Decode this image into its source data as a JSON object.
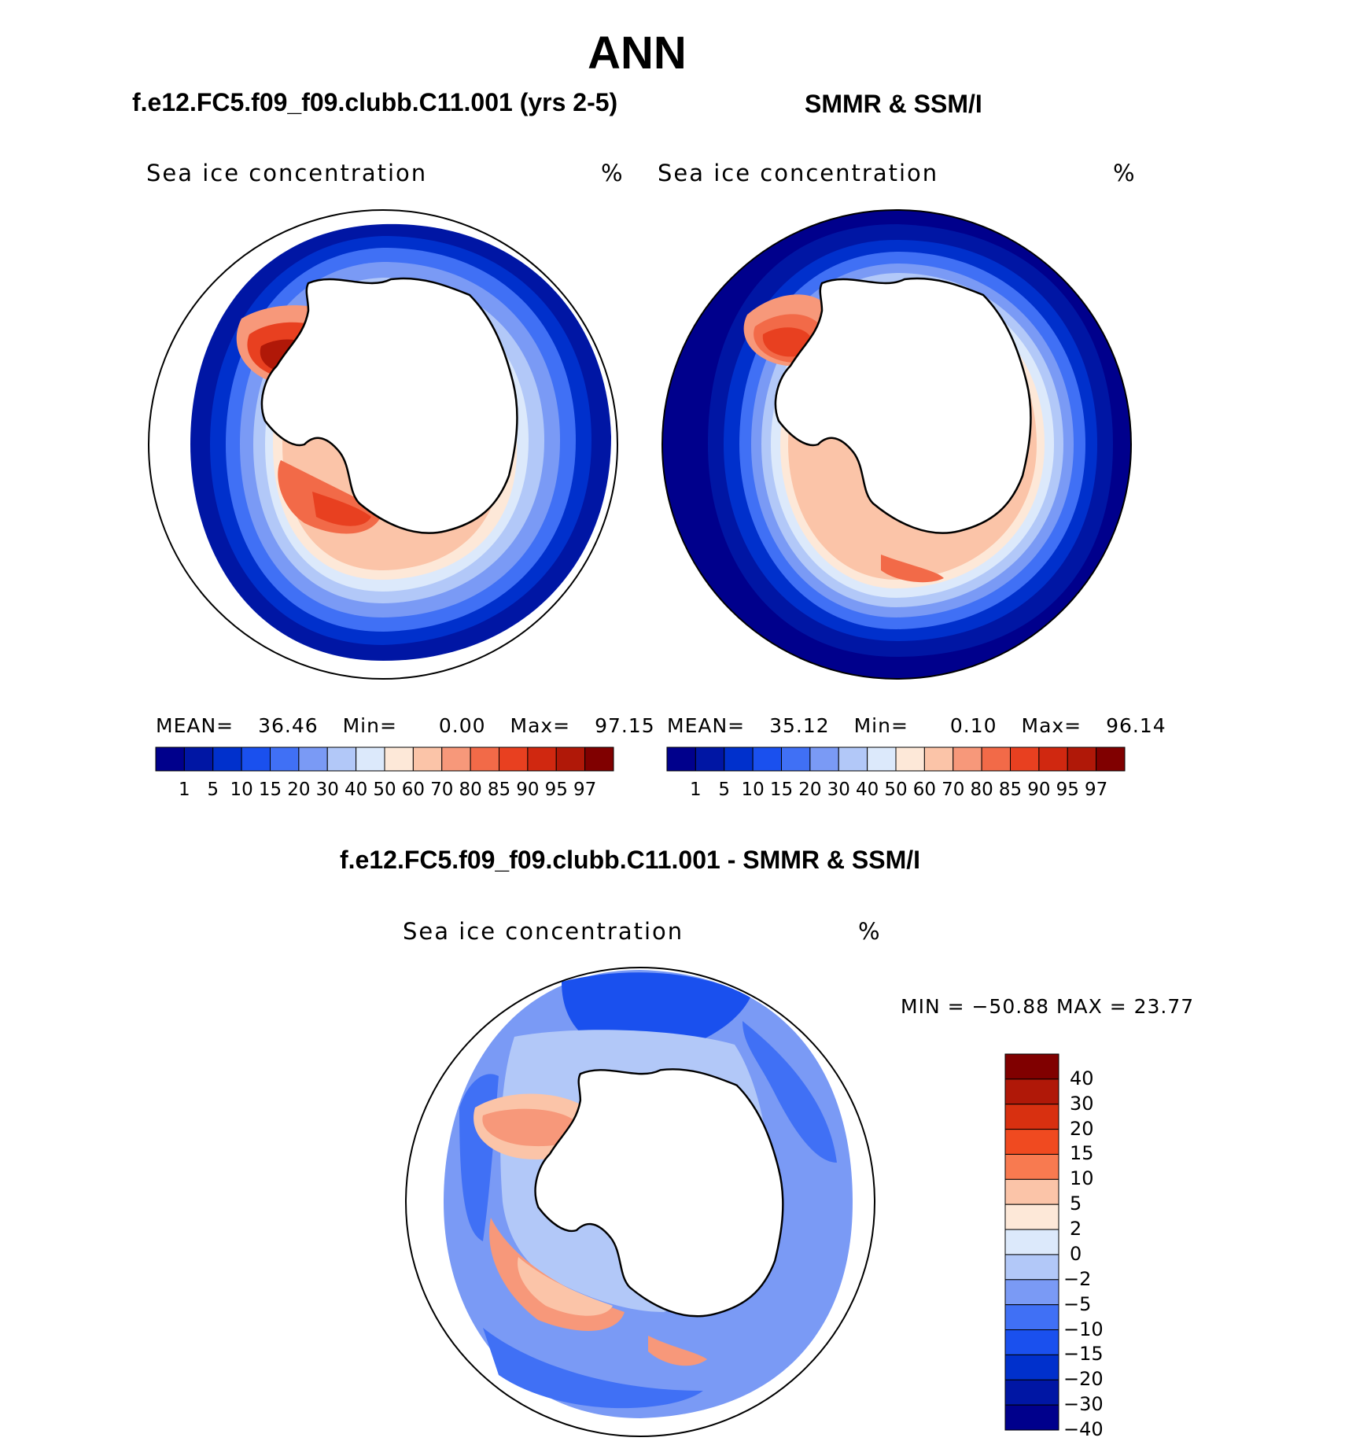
{
  "main_title": "ANN",
  "panels": {
    "model": {
      "title": "f.e12.FC5.f09_f09.clubb.C11.001 (yrs 2-5)",
      "label": "Sea ice concentration",
      "units": "%",
      "stats": {
        "mean_label": "MEAN=",
        "mean": "36.46",
        "min_label": "Min=",
        "min": "0.00",
        "max_label": "Max=",
        "max": "97.15"
      }
    },
    "obs": {
      "title": "SMMR & SSM/I",
      "label": "Sea ice concentration",
      "units": "%",
      "stats": {
        "mean_label": "MEAN=",
        "mean": "35.12",
        "min_label": "Min=",
        "min": "0.10",
        "max_label": "Max=",
        "max": "96.14"
      }
    },
    "diff": {
      "title": "f.e12.FC5.f09_f09.clubb.C11.001 - SMMR & SSM/I",
      "label": "Sea ice concentration",
      "units": "%",
      "minmax": "MIN = −50.88 MAX =   23.77"
    }
  },
  "colorbar": {
    "ticks": [
      "1",
      "5",
      "10",
      "15",
      "20",
      "30",
      "40",
      "50",
      "60",
      "70",
      "80",
      "85",
      "90",
      "95",
      "97"
    ],
    "colors": [
      "#00008c",
      "#0016a4",
      "#0030cc",
      "#1a50ee",
      "#4070f5",
      "#7a9af5",
      "#b2c8f8",
      "#dce9fb",
      "#fde8d8",
      "#fbc4a8",
      "#f7987a",
      "#f26a48",
      "#e84020",
      "#d02810",
      "#b01808",
      "#800000"
    ]
  },
  "diff_colorbar": {
    "ticks": [
      "40",
      "30",
      "20",
      "15",
      "10",
      "5",
      "2",
      "0",
      "−2",
      "−5",
      "−10",
      "−15",
      "−20",
      "−30",
      "−40"
    ],
    "colors": [
      "#800000",
      "#b01808",
      "#d83010",
      "#f04a20",
      "#f87a50",
      "#fbc4a8",
      "#fde8d8",
      "#dce9fb",
      "#b2c8f8",
      "#7a9af5",
      "#4070f5",
      "#1a50ee",
      "#0030cc",
      "#0016a4",
      "#00008c"
    ]
  }
}
